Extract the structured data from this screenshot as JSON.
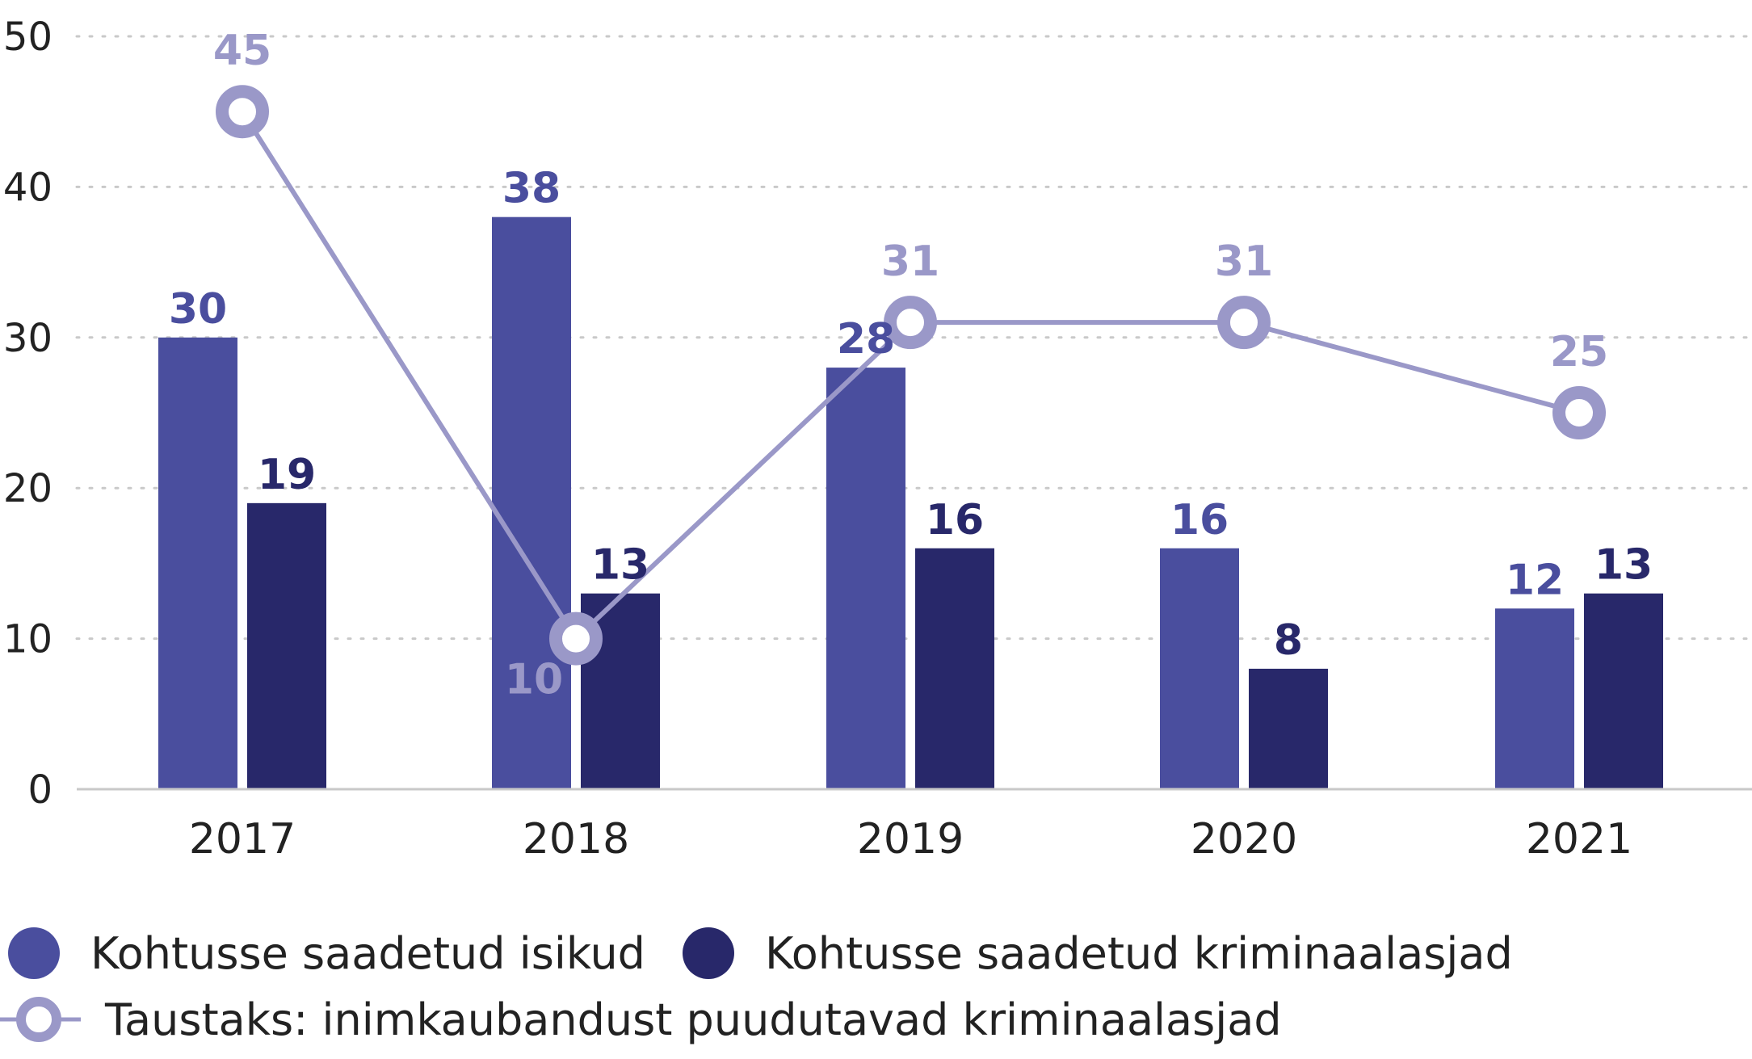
{
  "colors": {
    "series1": "#4a4e9e",
    "series2": "#28286a",
    "series3": "#9a98c8",
    "series1_label": "#4a4e9e",
    "series2_label": "#28286a",
    "series3_label": "#9a98c8",
    "axis": "#c9c9c9",
    "grid": "#c9c9c9"
  },
  "legend": {
    "item1": "Kohtusse saadetud isikud",
    "item2": "Kohtusse saadetud kriminaalasjad",
    "item3": "Taustaks: inimkaubandust puudutavad kriminaalasjad"
  },
  "chart_data": {
    "type": "bar",
    "categories": [
      "2017",
      "2018",
      "2019",
      "2020",
      "2021"
    ],
    "ylim": [
      0,
      50
    ],
    "yticks": [
      0,
      10,
      20,
      30,
      40,
      50
    ],
    "grid": true,
    "legend_position": "bottom",
    "series": [
      {
        "name": "Kohtusse saadetud isikud",
        "type": "bar",
        "values": [
          30,
          38,
          28,
          16,
          12
        ]
      },
      {
        "name": "Kohtusse saadetud kriminaalasjad",
        "type": "bar",
        "values": [
          19,
          13,
          16,
          8,
          13
        ]
      },
      {
        "name": "Taustaks: inimkaubandust puudutavad kriminaalasjad",
        "type": "line",
        "values": [
          45,
          10,
          31,
          31,
          25
        ]
      }
    ]
  }
}
